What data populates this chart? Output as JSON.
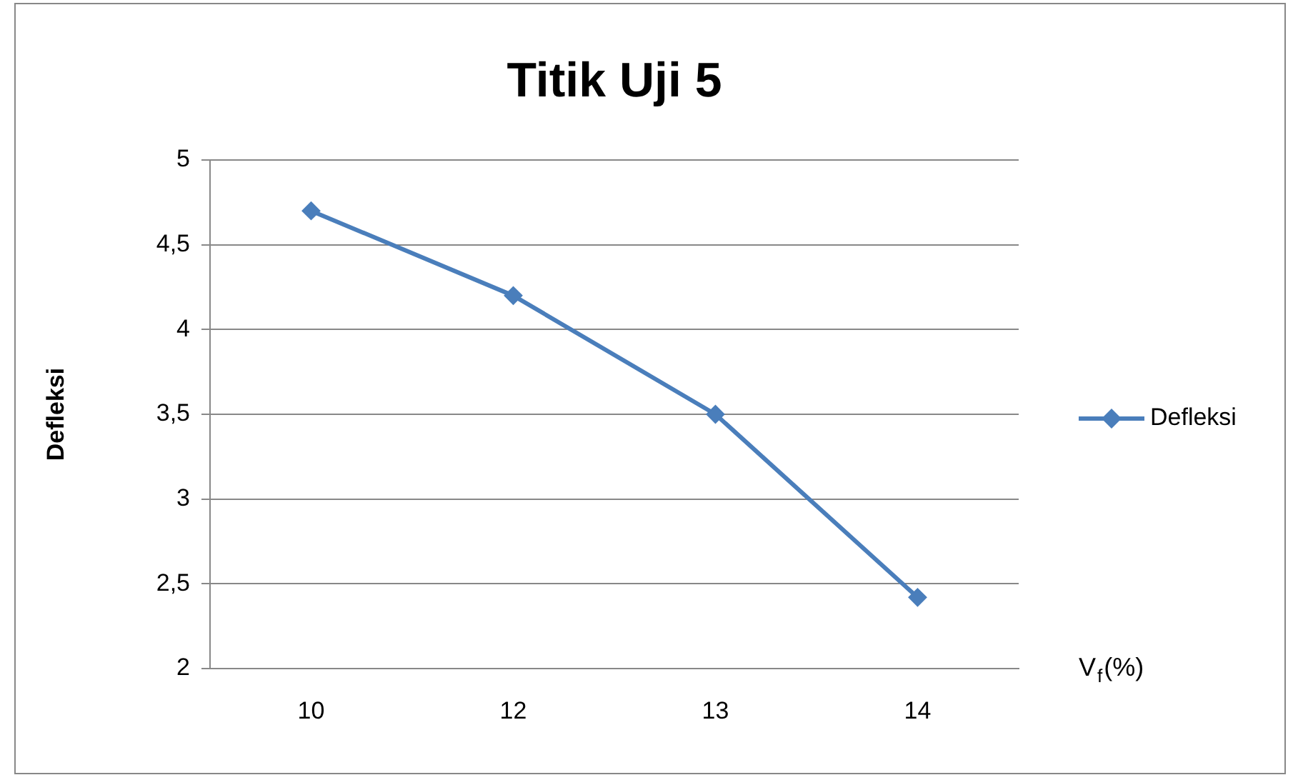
{
  "chart_data": {
    "type": "line",
    "title": "Titik Uji 5",
    "xlabel": "V$_{f}$(%)",
    "ylabel": "Defleksi",
    "categories": [
      "10",
      "12",
      "13",
      "14"
    ],
    "series": [
      {
        "name": "Defleksi",
        "color": "#4a7ebb",
        "values": [
          4.7,
          4.2,
          3.5,
          2.42
        ]
      }
    ],
    "ylim": [
      2,
      5
    ],
    "yticks": [
      2,
      {
        "value": 2.5,
        "label": "2,5"
      },
      3,
      {
        "value": 3.5,
        "label": "3,5"
      },
      4,
      {
        "value": 4.5,
        "label": "4,5"
      },
      5
    ],
    "grid": "y",
    "legend": "right",
    "marker": "diamond",
    "line_style": "solid"
  }
}
